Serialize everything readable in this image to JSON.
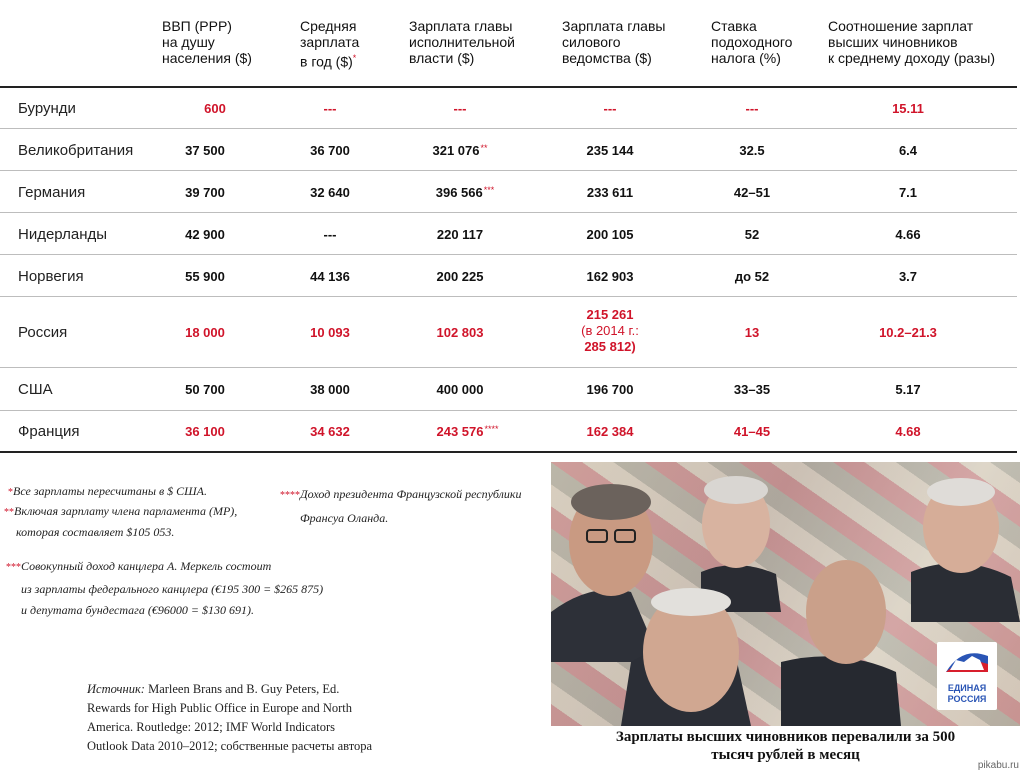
{
  "headers": [
    [
      "ВВП  (PPP)",
      "на душу",
      "населения ($)"
    ],
    [
      "Средняя",
      "зарплата",
      "в год ($)"
    ],
    [
      "Зарплата главы",
      "исполнительной",
      "власти ($)"
    ],
    [
      "Зарплата главы",
      "силового",
      "ведомства ($)"
    ],
    [
      "Ставка",
      "подоходного",
      "налога (%)"
    ],
    [
      "Соотношение зарплат",
      "высших чиновников",
      "к среднему доходу (разы)"
    ]
  ],
  "header_star": "*",
  "rows": [
    {
      "country": "Бурунди",
      "gdp": "600",
      "avg": "---",
      "exec": "---",
      "sec": "---",
      "tax": "---",
      "ratio": "15.11"
    },
    {
      "country": "Великобритания",
      "gdp": "37 500",
      "avg": "36 700",
      "exec": "321 076",
      "exec_star": "**",
      "sec": "235 144",
      "tax": "32.5",
      "ratio": "6.4"
    },
    {
      "country": "Германия",
      "gdp": "39 700",
      "avg": "32 640",
      "exec": "396 566",
      "exec_star": "***",
      "sec": "233 611",
      "tax": "42–51",
      "ratio": "7.1"
    },
    {
      "country": "Нидерланды",
      "gdp": "42 900",
      "avg": "---",
      "exec": "220 117",
      "sec": "200 105",
      "tax": "52",
      "ratio": "4.66"
    },
    {
      "country": "Норвегия",
      "gdp": "55 900",
      "avg": "44 136",
      "exec": "200 225",
      "sec": "162 903",
      "tax": "до 52",
      "ratio": "3.7"
    },
    {
      "country": "Россия",
      "gdp": "18 000",
      "avg": "10 093",
      "exec": "102 803",
      "sec": "215 261",
      "sec_note1": "(в 2014 г.:",
      "sec_note2": "285 812)",
      "tax": "13",
      "ratio": "10.2–21.3"
    },
    {
      "country": "США",
      "gdp": "50 700",
      "avg": "38 000",
      "exec": "400 000",
      "sec": "196 700",
      "tax": "33–35",
      "ratio": "5.17"
    },
    {
      "country": "Франция",
      "gdp": "36 100",
      "avg": "34 632",
      "exec": "243 576",
      "exec_star": "****",
      "sec": "162 384",
      "tax": "41–45",
      "ratio": "4.68"
    }
  ],
  "notes": {
    "n1_mark": "*",
    "n1": "Все зарплаты пересчитаны в $ США.",
    "n2_mark": "**",
    "n2a": "Включая зарплату члена парламента (MP),",
    "n2b": "которая составляет $105 053.",
    "n3_mark": "***",
    "n3a": "Совокупный доход канцлера А. Меркель состоит",
    "n3b": "из зарплаты федерального канцлера (€195 300 = $265 875)",
    "n3c": "и депутата бундестага (€96000 = $130 691).",
    "n4_mark": "****",
    "n4a": "Доход президента Французской республики",
    "n4b": "Франсуа Оланда."
  },
  "source": {
    "label": "Источник:",
    "line1": " Marleen Brans and B. Guy Peters, Ed.",
    "line2": "Rewards for High Public Office in Europe and North",
    "line3": "America. Routledge: 2012; IMF World Indicators",
    "line4": "Outlook Data 2010–2012; собственные расчеты автора"
  },
  "photo": {
    "logo_line1": "ЕДИНАЯ",
    "logo_line2": "РОССИЯ",
    "caption1": "Зарплаты высших чиновников перевалили за 500",
    "caption2": "тысяч рублей в месяц"
  },
  "watermark": "pikabu.ru",
  "colors": {
    "accent": "#d0142a",
    "text": "#111111"
  }
}
